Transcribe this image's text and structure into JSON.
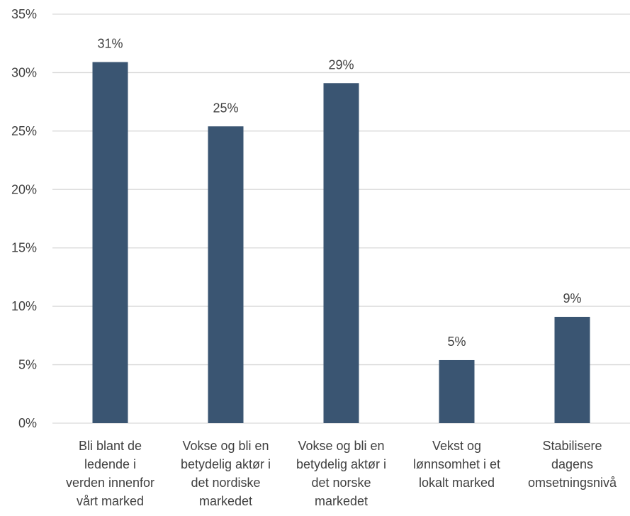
{
  "chart_data": {
    "type": "bar",
    "categories": [
      [
        "Bli blant de",
        "ledende i",
        "verden innenfor",
        "vårt marked"
      ],
      [
        "Vokse og bli en",
        "betydelig aktør i",
        "det nordiske",
        "markedet"
      ],
      [
        "Vokse og bli en",
        "betydelig aktør i",
        "det norske",
        "markedet"
      ],
      [
        "Vekst og",
        "lønnsomhet i et",
        "lokalt marked"
      ],
      [
        "Stabilisere",
        "dagens",
        "omsetningsnivå"
      ]
    ],
    "values": [
      30.9,
      25.4,
      29.1,
      5.4,
      9.1
    ],
    "data_labels": [
      "31%",
      "25%",
      "29%",
      "5%",
      "9%"
    ],
    "y_ticks": [
      0,
      5,
      10,
      15,
      20,
      25,
      30,
      35
    ],
    "y_tick_labels": [
      "0%",
      "5%",
      "10%",
      "15%",
      "20%",
      "25%",
      "30%",
      "35%"
    ],
    "ylim": [
      0,
      35
    ],
    "grid": true,
    "legend": "none",
    "colors": {
      "bar": "#3a5572",
      "grid": "#d9d9d9",
      "text": "#404040"
    }
  }
}
